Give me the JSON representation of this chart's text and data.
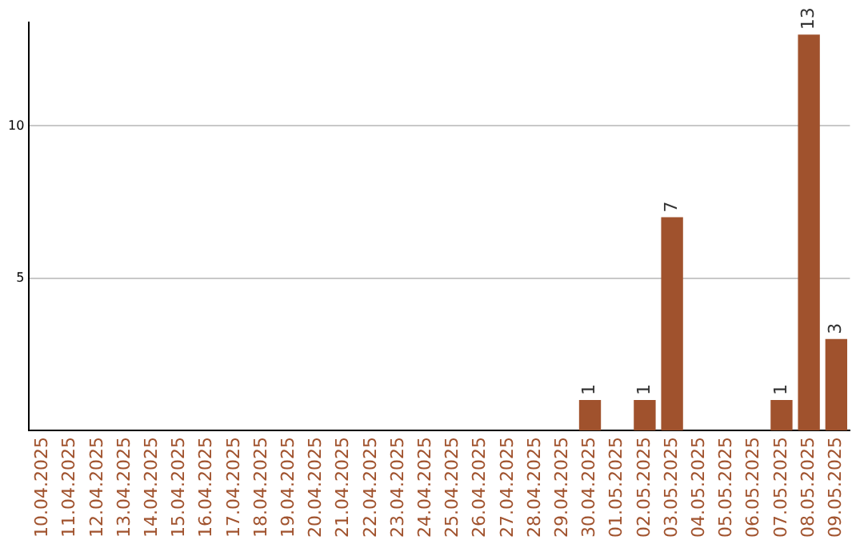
{
  "chart_data": {
    "type": "bar",
    "categories": [
      "10.04.2025",
      "11.04.2025",
      "12.04.2025",
      "13.04.2025",
      "14.04.2025",
      "15.04.2025",
      "16.04.2025",
      "17.04.2025",
      "18.04.2025",
      "19.04.2025",
      "20.04.2025",
      "21.04.2025",
      "22.04.2025",
      "23.04.2025",
      "24.04.2025",
      "25.04.2025",
      "26.04.2025",
      "27.04.2025",
      "28.04.2025",
      "29.04.2025",
      "30.04.2025",
      "01.05.2025",
      "02.05.2025",
      "03.05.2025",
      "04.05.2025",
      "05.05.2025",
      "06.05.2025",
      "07.05.2025",
      "08.05.2025",
      "09.05.2025"
    ],
    "values": [
      0,
      0,
      0,
      0,
      0,
      0,
      0,
      0,
      0,
      0,
      0,
      0,
      0,
      0,
      0,
      0,
      0,
      0,
      0,
      0,
      1,
      0,
      1,
      7,
      0,
      0,
      0,
      1,
      13,
      3
    ],
    "value_labels": [
      null,
      null,
      null,
      null,
      null,
      null,
      null,
      null,
      null,
      null,
      null,
      null,
      null,
      null,
      null,
      null,
      null,
      null,
      null,
      null,
      "1",
      null,
      "1",
      "7",
      null,
      null,
      null,
      "1",
      "13",
      "3"
    ],
    "color": "#a0522d",
    "ylim": [
      0,
      13.4
    ],
    "yticks": [
      5,
      10
    ],
    "grid": "y",
    "legend": false
  }
}
